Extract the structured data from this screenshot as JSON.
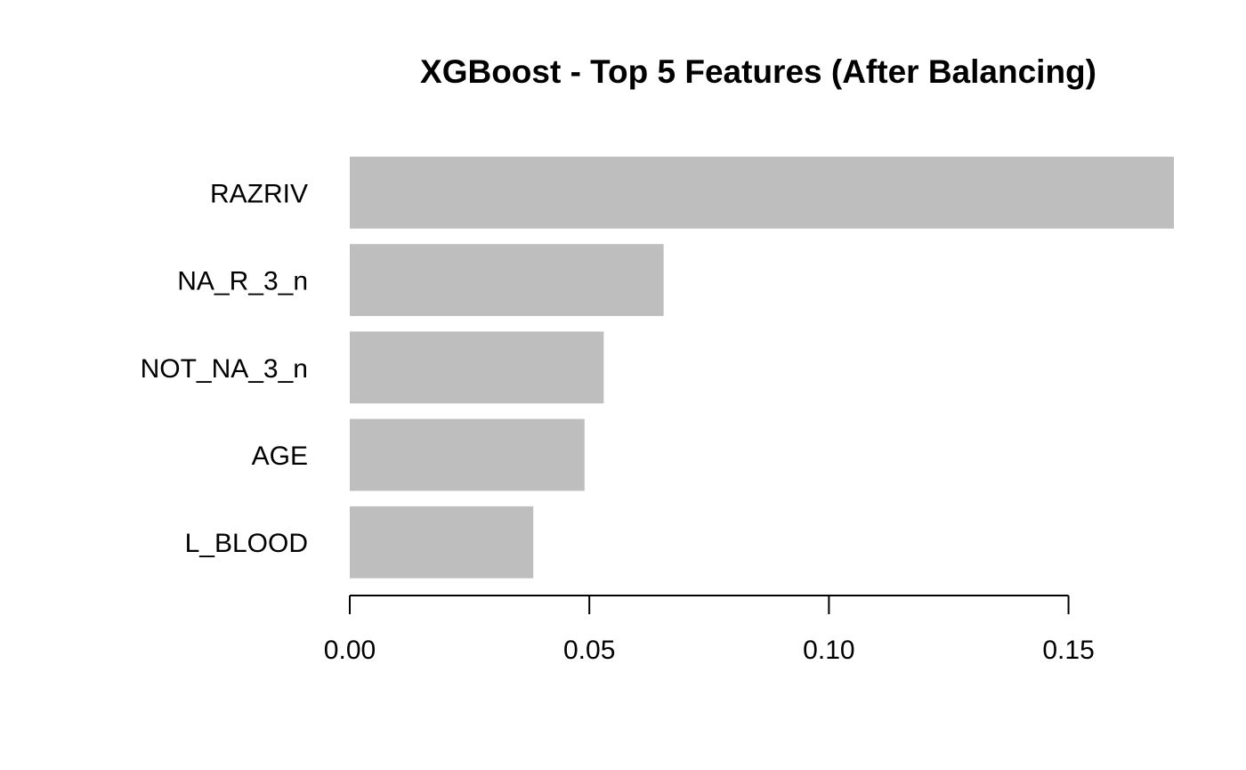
{
  "chart_data": {
    "type": "bar",
    "orientation": "horizontal",
    "title": "XGBoost - Top 5 Features (After Balancing)",
    "xlabel": "",
    "ylabel": "",
    "categories": [
      "RAZRIV",
      "NA_R_3_n",
      "NOT_NA_3_n",
      "AGE",
      "L_BLOOD"
    ],
    "values": [
      0.172,
      0.0655,
      0.053,
      0.049,
      0.0383
    ],
    "xlim": [
      0,
      0.172
    ],
    "xticks": [
      0.0,
      0.05,
      0.1,
      0.15
    ],
    "xtick_labels": [
      "0.00",
      "0.05",
      "0.10",
      "0.15"
    ],
    "bar_color": "#bebebe",
    "grid": false,
    "legend": "none"
  }
}
